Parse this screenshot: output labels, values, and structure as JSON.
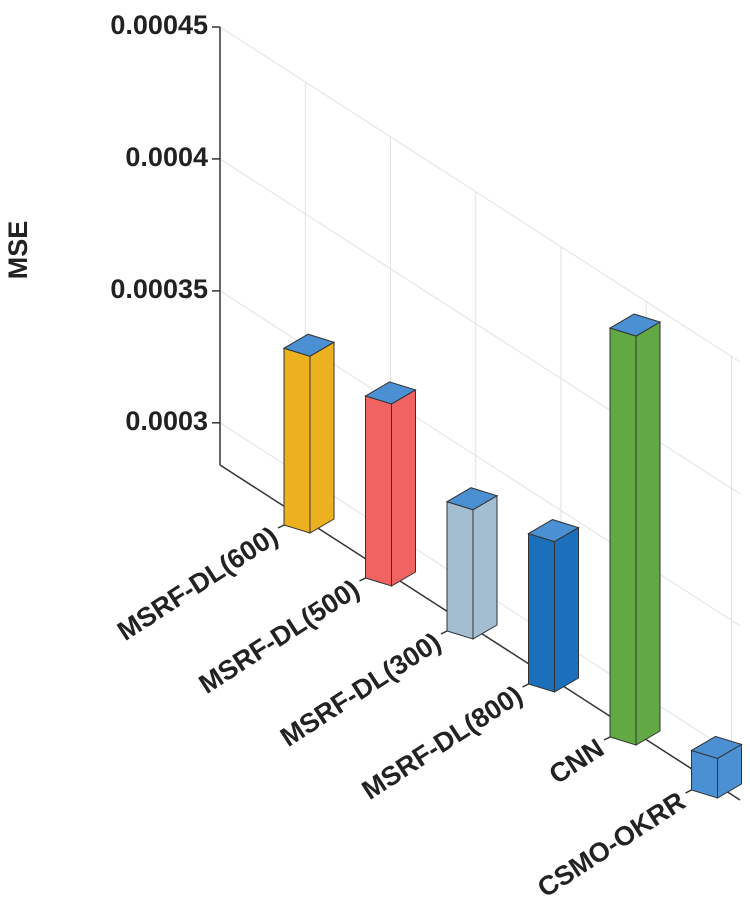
{
  "chart_data": {
    "type": "bar3d",
    "y_label": "MSE",
    "categories": [
      "MSRF-DL(600)",
      "MSRF-DL(500)",
      "MSRF-DL(300)",
      "MSRF-DL(800)",
      "CNN",
      "CSMO-OKRR"
    ],
    "values": [
      0.000351,
      0.000353,
      0.000333,
      0.000341,
      0.000439,
      0.000299
    ],
    "colors": [
      "#edb120",
      "#ef6363",
      "#a3bdd1",
      "#1b6fbb",
      "#62a844",
      "#4a90d2"
    ],
    "top_color": "#4a90d2",
    "ylim": [
      0.000284,
      0.00045
    ],
    "yticks": [
      0.0003,
      0.00035,
      0.0004,
      0.00045
    ],
    "grid": true
  }
}
